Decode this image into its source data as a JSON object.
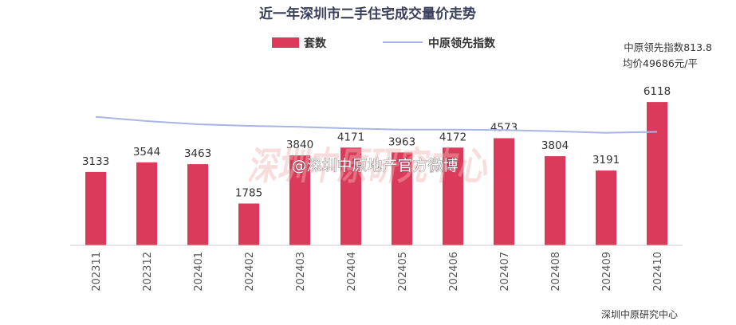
{
  "chart_data": {
    "type": "bar",
    "title": "近一年深圳市二手住宅成交量价走势",
    "categories": [
      "202311",
      "202312",
      "202401",
      "202402",
      "202403",
      "202404",
      "202405",
      "202406",
      "202407",
      "202408",
      "202409",
      "202410"
    ],
    "series": [
      {
        "name": "套数",
        "type": "bar",
        "color": "#dc3a5a",
        "values": [
          3133,
          3544,
          3463,
          1785,
          3840,
          4171,
          3963,
          4172,
          4573,
          3804,
          3191,
          6118
        ]
      },
      {
        "name": "中原领先指数",
        "type": "line",
        "color": "#a9b5e6",
        "values": [
          842,
          834,
          828,
          825,
          823,
          820,
          818,
          818,
          817,
          815,
          812,
          813.8
        ]
      }
    ],
    "bar_ylim": [
      0,
      6800
    ],
    "line_ylim": [
      600,
      900
    ],
    "annotations": [
      "中原领先指数813.8",
      "均价49686元/平"
    ],
    "source": "深圳中原研究中心",
    "watermark": {
      "big": "深圳中原研究中心",
      "text": "@深圳中原地产官方微博"
    }
  }
}
